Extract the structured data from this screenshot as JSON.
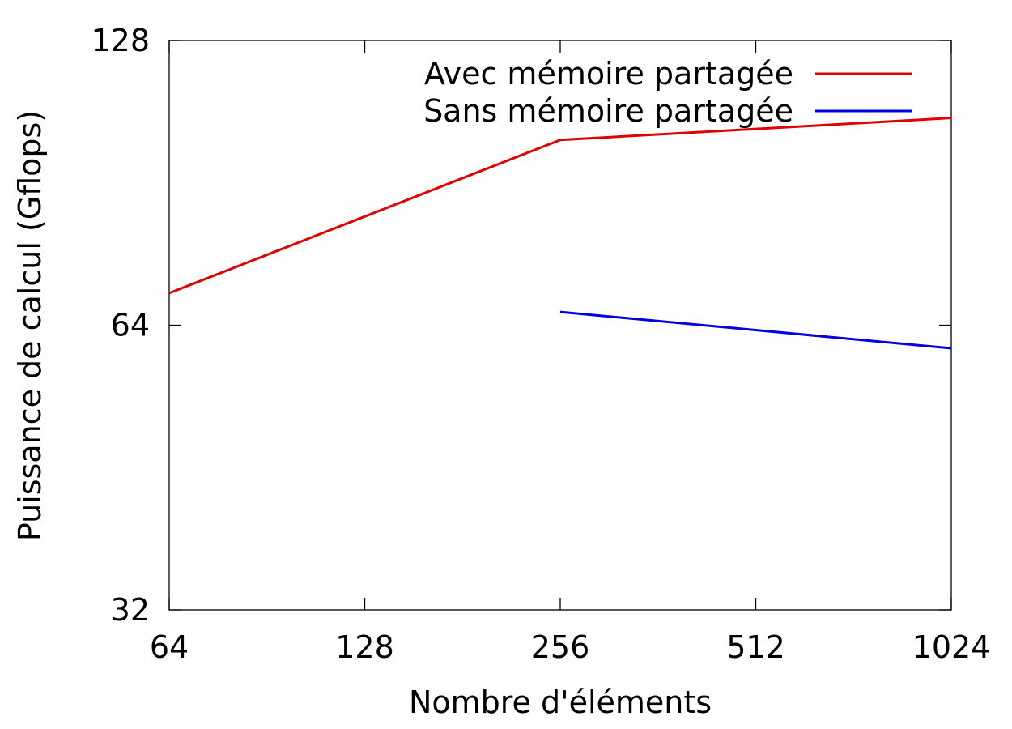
{
  "chart_data": {
    "type": "line",
    "title": "",
    "xlabel": "Nombre d'éléments",
    "ylabel": "Puissance de calcul (Gflops)",
    "x_scale": "log2",
    "y_scale": "log2",
    "xlim": [
      64,
      1024
    ],
    "ylim": [
      32,
      128
    ],
    "x_ticks": [
      64,
      128,
      256,
      512,
      1024
    ],
    "x_tick_labels": [
      "64",
      "128",
      "256",
      "512",
      "1024"
    ],
    "y_ticks": [
      32,
      64,
      128
    ],
    "y_tick_labels": [
      "32",
      "64",
      "128"
    ],
    "grid": false,
    "legend_position": "top-right",
    "series": [
      {
        "name": "Avec mémoire partagée",
        "color": "#e00000",
        "x": [
          64,
          256,
          1024
        ],
        "y": [
          69.2,
          100.5,
          106.0
        ]
      },
      {
        "name": "Sans mémoire partagée",
        "color": "#0000e0",
        "x": [
          256,
          1024
        ],
        "y": [
          66.1,
          60.5
        ]
      }
    ]
  }
}
